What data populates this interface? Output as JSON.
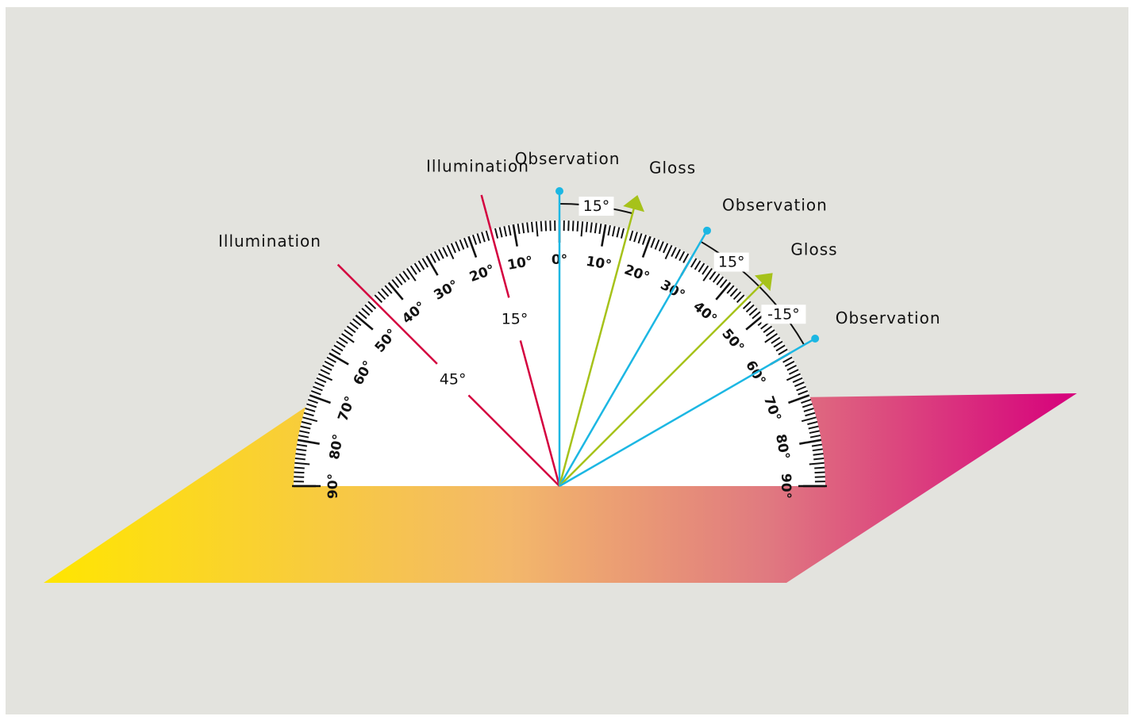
{
  "colors": {
    "background": "#e3e3de",
    "surface_gradient": [
      "#ffe600",
      "#f3b86a",
      "#e07a80",
      "#d6007c"
    ],
    "illumination": "#d4003f",
    "observation": "#1cb7e3",
    "gloss": "#a6c21a",
    "protractor_face": "#ffffff",
    "ink": "#111111"
  },
  "scale": {
    "left_labels": [
      "90°",
      "80°",
      "70°",
      "60°",
      "50°",
      "40°",
      "30°",
      "20°",
      "10°"
    ],
    "right_labels": [
      "0°",
      "10°",
      "20°",
      "30°",
      "40°",
      "50°",
      "60°",
      "70°",
      "80°",
      "90°"
    ]
  },
  "rays": [
    {
      "kind": "illumination",
      "angle_deg": -45,
      "label": "Illumination",
      "angle_label": "45°",
      "end": "none"
    },
    {
      "kind": "illumination",
      "angle_deg": -15,
      "label": "Illumination",
      "angle_label": "15°",
      "end": "none"
    },
    {
      "kind": "observation",
      "angle_deg": 0,
      "label": "Observation",
      "end": "dot"
    },
    {
      "kind": "gloss",
      "angle_deg": 15,
      "label": "Gloss",
      "end": "arrow"
    },
    {
      "kind": "observation",
      "angle_deg": 30,
      "label": "Observation",
      "end": "dot"
    },
    {
      "kind": "gloss",
      "angle_deg": 45,
      "label": "Gloss",
      "end": "arrow"
    },
    {
      "kind": "observation",
      "angle_deg": 60,
      "label": "Observation",
      "end": "dot"
    }
  ],
  "arc_labels": [
    {
      "text": "15°",
      "from_deg": 0,
      "to_deg": 15
    },
    {
      "text": "15°",
      "from_deg": 30,
      "to_deg": 45
    },
    {
      "text": "-15°",
      "from_deg": 45,
      "to_deg": 60
    }
  ]
}
